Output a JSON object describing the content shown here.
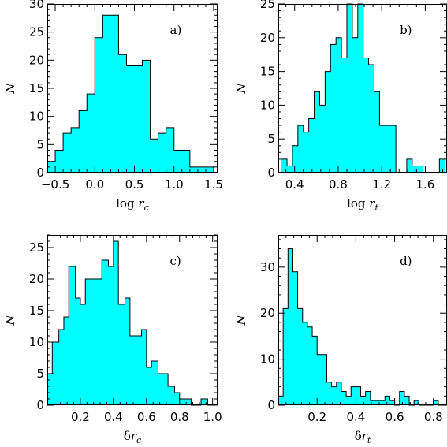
{
  "chart_data": [
    {
      "type": "bar",
      "panel_label": "a)",
      "xlabel": "log r_c",
      "xlabel_parts": {
        "pre": "log ",
        "var": "r",
        "sub": "c"
      },
      "ylabel": "N",
      "xlim": [
        -0.6,
        1.55
      ],
      "ylim": [
        0,
        30
      ],
      "xticks": [
        -0.5,
        0.0,
        0.5,
        1.0,
        1.5
      ],
      "xticklabels": [
        "−0.5",
        "0.0",
        "0.5",
        "1.0",
        "1.5"
      ],
      "yticks": [
        0,
        5,
        10,
        15,
        20,
        25,
        30
      ],
      "yticklabels": [
        "0",
        "5",
        "10",
        "15",
        "20",
        "25",
        "30"
      ],
      "bin_edges": [
        -0.6,
        -0.5,
        -0.4,
        -0.3,
        -0.2,
        -0.1,
        0.0,
        0.1,
        0.2,
        0.3,
        0.4,
        0.5,
        0.6,
        0.7,
        0.8,
        0.9,
        1.0,
        1.1,
        1.2,
        1.3,
        1.4,
        1.5
      ],
      "values": [
        2,
        4,
        7,
        8,
        11,
        14,
        24,
        28,
        28,
        21,
        19,
        19,
        20,
        6,
        7,
        8,
        4,
        4,
        1,
        1,
        1
      ]
    },
    {
      "type": "bar",
      "panel_label": "b)",
      "xlabel": "log r_t",
      "xlabel_parts": {
        "pre": "log ",
        "var": "r",
        "sub": "t"
      },
      "ylabel": "N",
      "xlim": [
        0.25,
        1.8
      ],
      "ylim": [
        0,
        25
      ],
      "xticks": [
        0.4,
        0.8,
        1.2,
        1.6
      ],
      "xticklabels": [
        "0.4",
        "0.8",
        "1.2",
        "1.6"
      ],
      "yticks": [
        0,
        5,
        10,
        15,
        20,
        25
      ],
      "yticklabels": [
        "0",
        "5",
        "10",
        "15",
        "20",
        "25"
      ],
      "bin_edges": [
        0.28,
        0.33,
        0.38,
        0.43,
        0.48,
        0.53,
        0.58,
        0.63,
        0.68,
        0.73,
        0.78,
        0.83,
        0.88,
        0.93,
        0.98,
        1.03,
        1.08,
        1.13,
        1.18,
        1.23,
        1.28,
        1.33,
        1.38,
        1.43,
        1.48,
        1.53,
        1.58,
        1.63,
        1.68,
        1.73,
        1.78
      ],
      "values": [
        2,
        1,
        4,
        7,
        6,
        8,
        12,
        10,
        15,
        19,
        20,
        17,
        25,
        20,
        25,
        17,
        16,
        12,
        7,
        7,
        7,
        0,
        0,
        2,
        1,
        1,
        0,
        0,
        0,
        2
      ]
    },
    {
      "type": "bar",
      "panel_label": "c)",
      "xlabel": "δr_c",
      "xlabel_parts": {
        "pre": "δ",
        "var": "r",
        "sub": "c"
      },
      "ylabel": "N",
      "xlim": [
        0.0,
        1.03
      ],
      "ylim": [
        0,
        27
      ],
      "xticks": [
        0.2,
        0.4,
        0.6,
        0.8,
        1.0
      ],
      "xticklabels": [
        "0.2",
        "0.4",
        "0.6",
        "0.8",
        "1.0"
      ],
      "yticks": [
        0,
        5,
        10,
        15,
        20,
        25
      ],
      "yticklabels": [
        "0",
        "5",
        "10",
        "15",
        "20",
        "25"
      ],
      "bin_edges": [
        0.0,
        0.03,
        0.07,
        0.1,
        0.13,
        0.17,
        0.2,
        0.23,
        0.27,
        0.3,
        0.33,
        0.37,
        0.4,
        0.43,
        0.47,
        0.5,
        0.53,
        0.57,
        0.6,
        0.63,
        0.67,
        0.7,
        0.73,
        0.77,
        0.8,
        0.83,
        0.87,
        0.9,
        0.93,
        0.97,
        1.0
      ],
      "values": [
        5,
        10,
        12,
        14,
        22,
        17,
        16,
        20,
        20,
        20,
        23,
        22,
        26,
        16,
        17,
        11,
        11,
        12,
        6,
        7,
        5,
        5,
        3,
        2,
        1,
        1,
        0,
        0,
        1,
        0
      ]
    },
    {
      "type": "bar",
      "panel_label": "d)",
      "xlabel": "δr_t",
      "xlabel_parts": {
        "pre": "δ",
        "var": "r",
        "sub": "t"
      },
      "ylabel": "N",
      "xlim": [
        0.0,
        0.87
      ],
      "ylim": [
        0,
        37
      ],
      "xticks": [
        0.2,
        0.4,
        0.6,
        0.8
      ],
      "xticklabels": [
        "0.2",
        "0.4",
        "0.6",
        "0.8"
      ],
      "yticks": [
        0,
        10,
        20,
        30
      ],
      "yticklabels": [
        "0",
        "10",
        "20",
        "30"
      ],
      "bin_edges": [
        0.0,
        0.025,
        0.05,
        0.075,
        0.1,
        0.125,
        0.15,
        0.175,
        0.2,
        0.225,
        0.25,
        0.275,
        0.3,
        0.325,
        0.35,
        0.375,
        0.4,
        0.425,
        0.45,
        0.475,
        0.5,
        0.525,
        0.55,
        0.575,
        0.6,
        0.625,
        0.65,
        0.675,
        0.7,
        0.725,
        0.75,
        0.775,
        0.8,
        0.825,
        0.85
      ],
      "values": [
        2,
        21,
        34,
        29,
        21,
        18,
        17,
        15,
        11,
        11,
        5,
        4,
        5,
        3,
        2,
        4,
        4,
        2,
        3,
        1,
        1,
        1,
        2,
        1,
        0,
        3,
        2,
        0,
        1,
        0,
        0,
        0,
        1,
        0
      ]
    }
  ]
}
